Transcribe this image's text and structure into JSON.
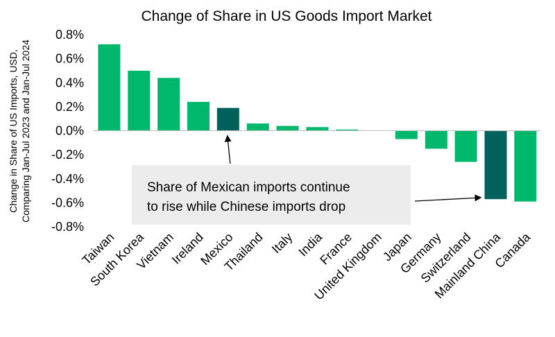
{
  "chart_data": {
    "type": "bar",
    "title": "Change of Share in US Goods Import Market",
    "ylabel_lines": [
      "Change in Share of US Imports, USD,",
      "Comparing Jan-Jul 2023 and Jan-Jul 2024"
    ],
    "xlabel": "",
    "categories": [
      "Taiwan",
      "South Korea",
      "Vietnam",
      "Ireland",
      "Mexico",
      "Thailand",
      "Italy",
      "India",
      "France",
      "United Kingdom",
      "Japan",
      "Germany",
      "Switzerland",
      "Mainland China",
      "Canada"
    ],
    "values": [
      0.72,
      0.5,
      0.44,
      0.24,
      0.19,
      0.06,
      0.04,
      0.03,
      0.01,
      0.0,
      -0.07,
      -0.15,
      -0.26,
      -0.57,
      -0.59
    ],
    "highlighted": [
      "Mexico",
      "Mainland China"
    ],
    "ylim": [
      -0.8,
      0.8
    ],
    "yticks": [
      0.8,
      0.6,
      0.4,
      0.2,
      0.0,
      -0.2,
      -0.4,
      -0.6,
      -0.8
    ],
    "ytick_labels": [
      "0.8%",
      "0.6%",
      "0.4%",
      "0.2%",
      "0.0%",
      "-0.2%",
      "-0.4%",
      "-0.6%",
      "-0.8%"
    ],
    "grid": false,
    "colors": {
      "bar": "#00b86b",
      "highlight": "#00605c",
      "annotation_box": "#ececec",
      "axis": "#bfbfbf"
    },
    "annotation": {
      "lines": [
        "Share of Mexican imports continue",
        "to rise while Chinese imports drop"
      ],
      "arrow_targets": [
        "Mexico",
        "Mainland China"
      ]
    }
  }
}
